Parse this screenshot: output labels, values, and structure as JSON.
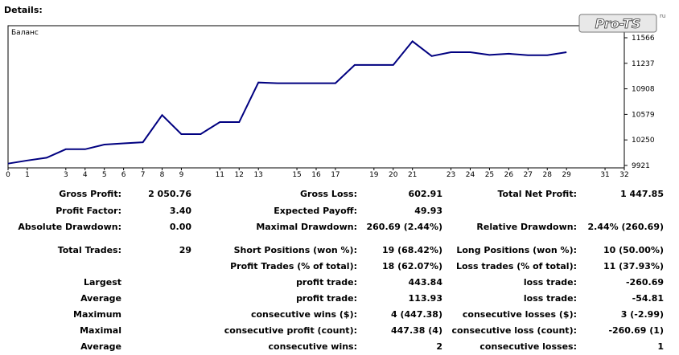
{
  "section_title": "Details:",
  "logo_text": "Pro-TS",
  "chart_data": {
    "type": "line",
    "legend": "Баланс",
    "x": [
      0,
      1,
      2,
      3,
      4,
      5,
      6,
      7,
      8,
      9,
      10,
      11,
      12,
      13,
      14,
      15,
      16,
      17,
      18,
      19,
      20,
      21,
      22,
      23,
      24,
      25,
      26,
      27,
      28,
      29
    ],
    "values": [
      9945,
      9985,
      10020,
      10130,
      10130,
      10190,
      10205,
      10220,
      10570,
      10325,
      10325,
      10480,
      10480,
      10990,
      10980,
      10980,
      10980,
      10980,
      11215,
      11215,
      11215,
      11520,
      11330,
      11380,
      11380,
      11345,
      11360,
      11340,
      11340,
      11380
    ],
    "xticks": [
      "0",
      "1",
      "3",
      "4",
      "5",
      "6",
      "7",
      "8",
      "9",
      "11",
      "12",
      "13",
      "15",
      "16",
      "17",
      "19",
      "20",
      "21",
      "23",
      "24",
      "25",
      "26",
      "27",
      "28",
      "29",
      "31",
      "32"
    ],
    "yticks": [
      "9921",
      "10250",
      "10579",
      "10908",
      "11237",
      "11566"
    ],
    "xlim": [
      0,
      32
    ],
    "ylim": [
      9921,
      11566
    ],
    "line_color": "#000080"
  },
  "stats": {
    "gross_profit_label": "Gross Profit:",
    "gross_profit": "2 050.76",
    "gross_loss_label": "Gross Loss:",
    "gross_loss": "602.91",
    "total_net_profit_label": "Total Net Profit:",
    "total_net_profit": "1 447.85",
    "profit_factor_label": "Profit Factor:",
    "profit_factor": "3.40",
    "expected_payoff_label": "Expected Payoff:",
    "expected_payoff": "49.93",
    "absolute_drawdown_label": "Absolute Drawdown:",
    "absolute_drawdown": "0.00",
    "maximal_drawdown_label": "Maximal Drawdown:",
    "maximal_drawdown": "260.69 (2.44%)",
    "relative_drawdown_label": "Relative Drawdown:",
    "relative_drawdown": "2.44% (260.69)",
    "total_trades_label": "Total Trades:",
    "total_trades": "29",
    "short_positions_label": "Short Positions (won %):",
    "short_positions": "19 (68.42%)",
    "long_positions_label": "Long Positions (won %):",
    "long_positions": "10 (50.00%)",
    "profit_trades_label": "Profit Trades (% of total):",
    "profit_trades": "18 (62.07%)",
    "loss_trades_label": "Loss trades (% of total):",
    "loss_trades": "11 (37.93%)",
    "largest_label": "Largest",
    "largest_profit_label": "profit trade:",
    "largest_profit": "443.84",
    "largest_loss_label": "loss trade:",
    "largest_loss": "-260.69",
    "average_label": "Average",
    "average_profit_label": "profit trade:",
    "average_profit": "113.93",
    "average_loss_label": "loss trade:",
    "average_loss": "-54.81",
    "maximum_label": "Maximum",
    "max_consec_wins_label": "consecutive wins ($):",
    "max_consec_wins": "4 (447.38)",
    "max_consec_losses_label": "consecutive losses ($):",
    "max_consec_losses": "3 (-2.99)",
    "maximal_label": "Maximal",
    "maximal_consec_profit_label": "consecutive profit (count):",
    "maximal_consec_profit": "447.38 (4)",
    "maximal_consec_loss_label": "consecutive loss (count):",
    "maximal_consec_loss": "-260.69 (1)",
    "average2_label": "Average",
    "avg_consec_wins_label": "consecutive wins:",
    "avg_consec_wins": "2",
    "avg_consec_losses_label": "consecutive losses:",
    "avg_consec_losses": "1"
  }
}
